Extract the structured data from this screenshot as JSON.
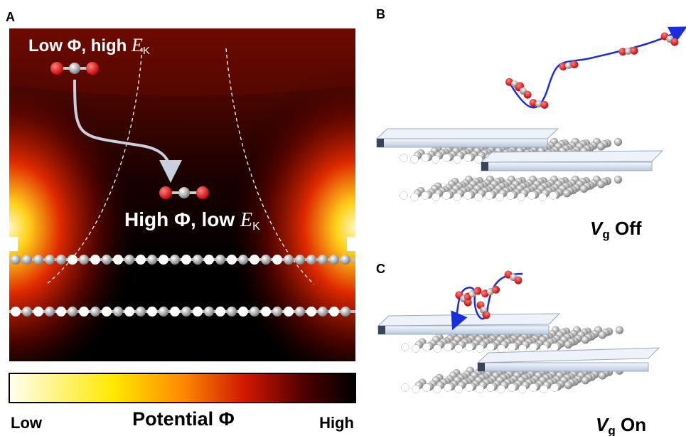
{
  "panels": [
    "A",
    "B",
    "C"
  ],
  "panel_a": {
    "top_label": {
      "text": "Low Φ, high ",
      "var": "E",
      "sub": "K"
    },
    "bottom_label": {
      "text": "High Φ, low ",
      "var": "E",
      "sub": "K"
    },
    "colorbar": {
      "low": "Low",
      "title": "Potential Φ",
      "high": "High"
    }
  },
  "panel_b": {
    "var": "V",
    "sub": "g",
    "text": "Off"
  },
  "panel_c": {
    "var": "V",
    "sub": "g",
    "text": "On"
  }
}
